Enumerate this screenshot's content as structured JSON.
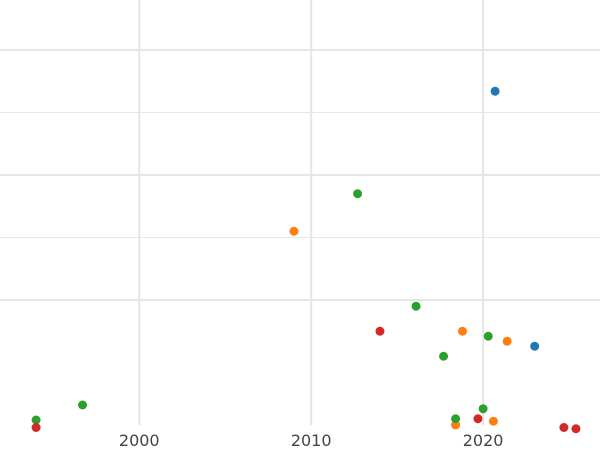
{
  "chart_data": {
    "type": "scatter",
    "title": "",
    "xlabel": "",
    "ylabel": "",
    "grid": true,
    "legend": "none",
    "xlim": [
      1991.9,
      2026.8
    ],
    "ylim": [
      0,
      3.4
    ],
    "xticks": [
      2000,
      2010,
      2020
    ],
    "xtick_labels": [
      "2000",
      "2010",
      "2020"
    ],
    "yticks": [
      1,
      2,
      3
    ],
    "series": [
      {
        "color": "#1f77b4",
        "x": [
          2020.7,
          2023.0
        ],
        "y": [
          2.67,
          0.63
        ]
      },
      {
        "color": "#ff7f0e",
        "x": [
          2009.0,
          2018.8,
          2021.4,
          2018.4,
          2020.6
        ],
        "y": [
          1.55,
          0.75,
          0.67,
          0.0,
          0.03
        ]
      },
      {
        "color": "#2ca02c",
        "x": [
          1994.0,
          1996.7,
          2012.7,
          2016.1,
          2017.7,
          2020.3,
          2020.0,
          2018.4
        ],
        "y": [
          0.04,
          0.16,
          1.85,
          0.95,
          0.55,
          0.71,
          0.13,
          0.05
        ]
      },
      {
        "color": "#d62728",
        "x": [
          1994.0,
          2014.0,
          2019.7,
          2024.7,
          2025.4
        ],
        "y": [
          -0.02,
          0.75,
          0.05,
          -0.02,
          -0.03
        ]
      }
    ]
  }
}
